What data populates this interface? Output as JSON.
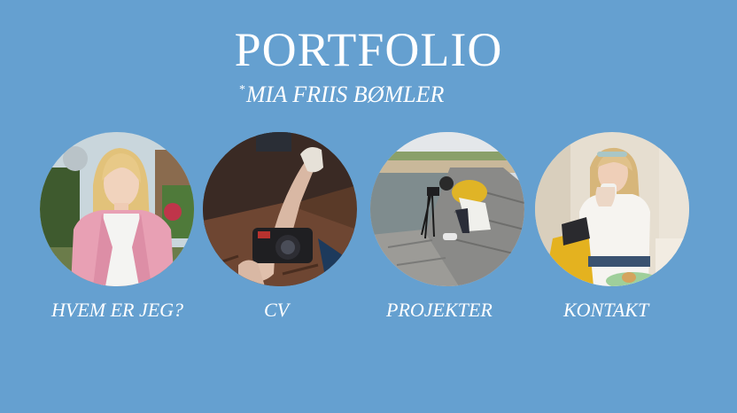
{
  "header": {
    "title": "PORTFOLIO",
    "star": "*",
    "name": "MIA FRIIS BØMLER"
  },
  "nav": [
    {
      "label": "HVEM ER JEG?",
      "photo": "portrait-pink-jacket"
    },
    {
      "label": "CV",
      "photo": "legs-with-camera"
    },
    {
      "label": "PROJEKTER",
      "photo": "photographer-on-pier"
    },
    {
      "label": "KONTAKT",
      "photo": "cafe-with-cup"
    }
  ],
  "colors": {
    "background": "#65a0d0",
    "text": "#ffffff"
  }
}
